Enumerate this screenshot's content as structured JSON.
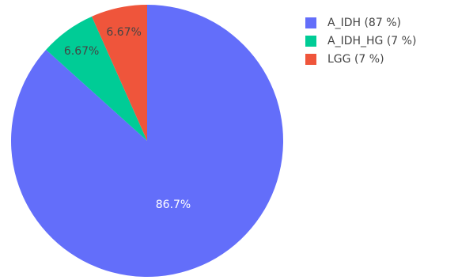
{
  "chart_data": {
    "type": "pie",
    "title": "",
    "categories": [
      "A_IDH",
      "A_IDH_HG",
      "LGG"
    ],
    "values": [
      86.7,
      6.67,
      6.67
    ],
    "slice_labels": [
      "86.7%",
      "6.67%",
      "6.67%"
    ],
    "colors": [
      "#636EFA",
      "#00CC96",
      "#EF553B"
    ],
    "label_colors": [
      "#ffffff",
      "#444444",
      "#444444"
    ],
    "direction": "clockwise",
    "start_angle": "top",
    "legend_position": "right",
    "legend": [
      {
        "label": "A_IDH (87 %)",
        "color": "#636EFA"
      },
      {
        "label": "A_IDH_HG (7 %)",
        "color": "#00CC96"
      },
      {
        "label": "LGG (7 %)",
        "color": "#EF553B"
      }
    ]
  }
}
